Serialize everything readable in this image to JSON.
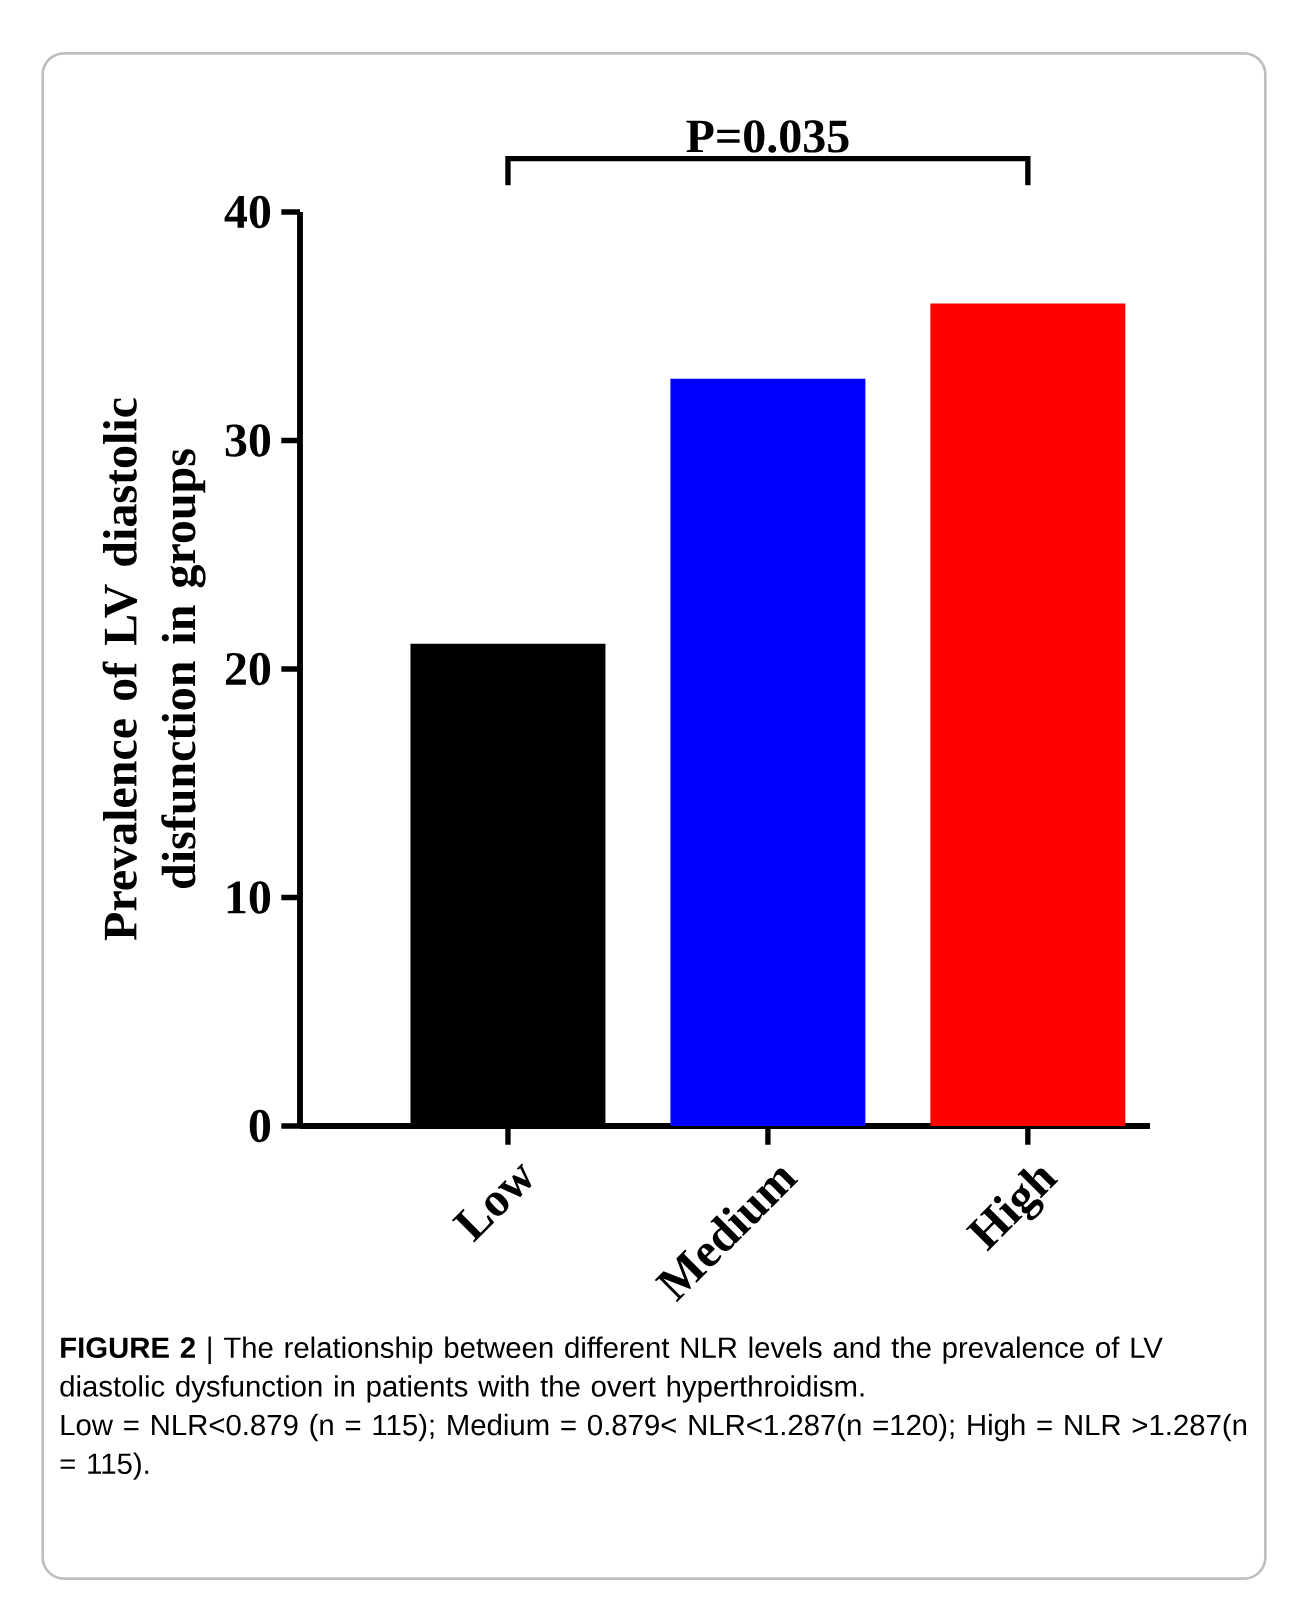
{
  "chart_data": {
    "type": "bar",
    "ylabel": "Prevalence of LV diastolic disfunction in groups",
    "categories": [
      "Low",
      "Medium",
      "High"
    ],
    "values": [
      21.1,
      32.7,
      36.0
    ],
    "colors": [
      "#000000",
      "#0000ff",
      "#ff0000"
    ],
    "ylim": [
      0,
      40
    ],
    "yticks": [
      0,
      10,
      20,
      30,
      40
    ],
    "grid": false,
    "annotations": [
      "P=0.035",
      "**FIGURE 2** | The relationship between different NLR levels and the prevalence of LV diastolic dysfunction in patients with the overt hyperthroidism.",
      "Low = NLR<0.879 (n = 115); Medium = 0.879< NLR<1.287(n =120); High = NLR >1.287(n = 115)."
    ]
  }
}
